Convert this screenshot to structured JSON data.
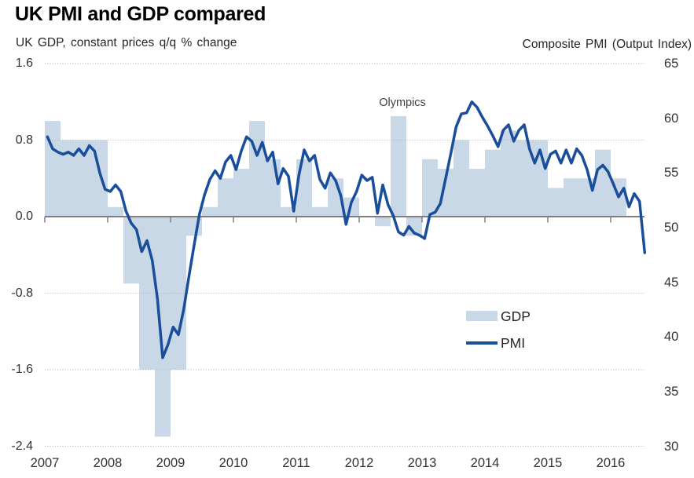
{
  "header": {
    "title": "UK PMI and GDP compared",
    "left_axis_title": "UK GDP, constant prices q/q % change",
    "right_axis_title": "Composite PMI (Output Index)"
  },
  "legend": {
    "gdp_label": "GDP",
    "pmi_label": "PMI"
  },
  "annotation": {
    "text": "Olympics"
  },
  "colors": {
    "gdp_bar": "#c9d8e6",
    "pmi_line": "#1a4e9b",
    "zero_line": "#7f7f7f",
    "gridline": "#b3b3b3",
    "tick": "#7f7f7f",
    "text": "#333333",
    "title": "#000000"
  },
  "chart_data": {
    "type": "combo (bar + line), dual y-axis",
    "title": "UK PMI and GDP compared",
    "left_axis": {
      "label": "UK GDP, constant prices q/q % change",
      "min": -2.4,
      "max": 1.6,
      "step": 0.8,
      "tick_labels": [
        "1.6",
        "0.8",
        "0.0",
        "-0.8",
        "-1.6",
        "-2.4"
      ]
    },
    "right_axis": {
      "label": "Composite PMI (Output Index)",
      "min": 30,
      "max": 65,
      "step": 5,
      "tick_labels": [
        "65",
        "60",
        "55",
        "50",
        "45",
        "40",
        "35",
        "30"
      ]
    },
    "x_axis": {
      "tick_labels": [
        "2007",
        "2008",
        "2009",
        "2010",
        "2011",
        "2012",
        "2013",
        "2014",
        "2015",
        "2016"
      ],
      "ticks_on_zero_line": true
    },
    "grid": "horizontal dotted lines, solid line at GDP 0.0",
    "legend_position": "inside plot, right-center",
    "annotation": {
      "text": "Olympics",
      "anchor": "above 2012-Q3 GDP bar"
    },
    "series": [
      {
        "name": "GDP",
        "type": "bar",
        "axis": "left",
        "cadence": "quarterly",
        "start": "2007-Q1",
        "end": "2016-Q1",
        "values": [
          1.0,
          0.8,
          0.8,
          0.8,
          0.1,
          -0.7,
          -1.6,
          -2.3,
          -1.6,
          -0.2,
          0.1,
          0.4,
          0.5,
          1.0,
          0.6,
          0.1,
          0.6,
          0.1,
          0.4,
          0.2,
          0.0,
          -0.1,
          1.05,
          -0.2,
          0.6,
          0.5,
          0.8,
          0.5,
          0.7,
          0.9,
          0.8,
          0.8,
          0.3,
          0.4,
          0.4,
          0.7,
          0.4
        ]
      },
      {
        "name": "PMI",
        "type": "line",
        "axis": "right",
        "cadence": "monthly",
        "start": "2007-01",
        "end": "2016-07",
        "values": [
          58.3,
          57.2,
          56.9,
          56.7,
          56.9,
          56.6,
          57.2,
          56.6,
          57.5,
          57.0,
          55.0,
          53.5,
          53.3,
          53.9,
          53.3,
          51.5,
          50.4,
          49.8,
          47.8,
          48.8,
          47.0,
          43.5,
          38.1,
          39.3,
          40.9,
          40.2,
          42.5,
          45.5,
          48.4,
          51.2,
          53.0,
          54.4,
          55.2,
          54.5,
          56.0,
          56.6,
          55.3,
          57.0,
          58.3,
          57.9,
          56.6,
          57.8,
          56.1,
          56.9,
          54.0,
          55.4,
          54.7,
          51.5,
          54.8,
          57.1,
          56.1,
          56.6,
          54.4,
          53.6,
          55.0,
          54.3,
          52.9,
          50.3,
          52.3,
          53.3,
          54.8,
          54.3,
          54.6,
          51.3,
          53.9,
          52.1,
          51.1,
          49.6,
          49.3,
          50.1,
          49.5,
          49.3,
          49.0,
          51.2,
          51.4,
          52.2,
          54.5,
          56.8,
          59.2,
          60.4,
          60.5,
          61.5,
          61.0,
          60.1,
          59.3,
          58.4,
          57.4,
          58.9,
          59.4,
          57.9,
          58.9,
          59.4,
          57.2,
          55.9,
          57.1,
          55.4,
          56.7,
          57.0,
          55.9,
          57.1,
          55.9,
          57.2,
          56.6,
          55.3,
          53.4,
          55.3,
          55.7,
          55.1,
          54.0,
          52.8,
          53.6,
          51.9,
          53.1,
          52.4,
          47.7
        ]
      }
    ]
  }
}
